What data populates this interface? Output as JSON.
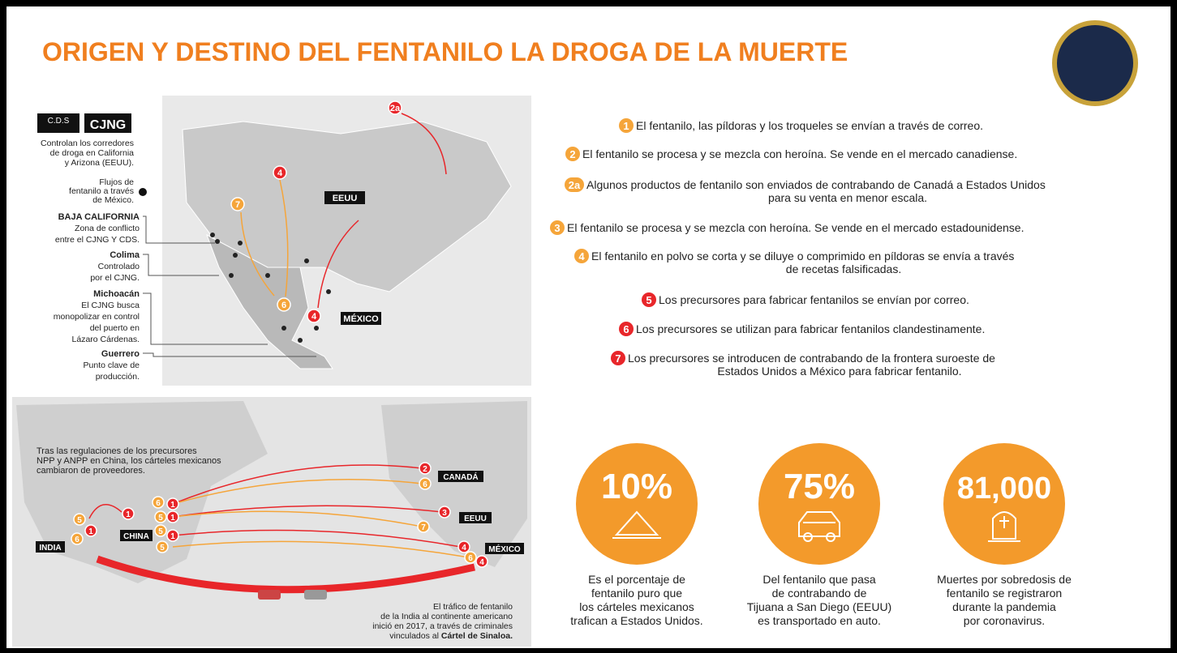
{
  "title": "ORIGEN Y DESTINO DEL FENTANILO LA DROGA DE LA MUERTE",
  "legend": {
    "cds": "C.D.S",
    "cjng": "CJNG",
    "corridors": [
      "Controlan los corredores",
      "de droga en California",
      "y Arizona (EEUU)."
    ],
    "flows": [
      "Flujos de",
      "fentanilo a través",
      "de México."
    ]
  },
  "regions": [
    {
      "name": "BAJA CALIFORNIA",
      "lines": [
        "Zona de conflicto",
        "entre el CJNG Y CDS."
      ]
    },
    {
      "name": "Colima",
      "lines": [
        "Controlado",
        "por el CJNG."
      ]
    },
    {
      "name": "Michoacán",
      "lines": [
        "El CJNG busca",
        "monopolizar en control",
        "del puerto en",
        "Lázaro Cárdenas."
      ]
    },
    {
      "name": "Guerrero",
      "lines": [
        "Punto clave de",
        "producción."
      ]
    }
  ],
  "usa_map": {
    "labels": [
      "EEUU",
      "MÉXICO"
    ],
    "markers": [
      "2a",
      "4",
      "7",
      "6",
      "4"
    ]
  },
  "world_map": {
    "note": [
      "Tras las regulaciones de los precursores",
      "NPP y ANPP en China, los cárteles mexicanos",
      "cambiaron de proveedores."
    ],
    "labels": [
      "CANADÁ",
      "EEUU",
      "MÉXICO",
      "CHINA",
      "INDIA"
    ],
    "markers": [
      "6",
      "1",
      "5",
      "1",
      "5",
      "1",
      "5",
      "1",
      "5",
      "1",
      "6",
      "2",
      "6",
      "3",
      "7",
      "4",
      "6",
      "4"
    ],
    "footnote": [
      "El tráfico de fentanilo",
      "de la India al continente americano",
      "inició en 2017, a través de criminales",
      "vinculados al"
    ],
    "footnote_bold": "Cártel de Sinaloa."
  },
  "steps": [
    {
      "number": "1",
      "lines": [
        "El fentanilo, las píldoras y los troqueles se envían a través de correo."
      ]
    },
    {
      "number": "2",
      "lines": [
        "El fentanilo se procesa y se mezcla con heroína. Se vende en el mercado canadiense."
      ]
    },
    {
      "number": "2a",
      "lines": [
        "Algunos productos de fentanilo son enviados de contrabando de Canadá a Estados Unidos",
        "para su venta en menor escala."
      ]
    },
    {
      "number": "3",
      "lines": [
        "El fentanilo se procesa y se mezcla con heroína. Se vende en el mercado estadounidense."
      ]
    },
    {
      "number": "4",
      "lines": [
        "El fentanilo en polvo se corta y se diluye o comprimido en píldoras se envía a través",
        "de recetas falsificadas."
      ]
    },
    {
      "number": "5",
      "lines": [
        "Los precursores para fabricar fentanilos se envían por correo."
      ]
    },
    {
      "number": "6",
      "lines": [
        "Los precursores se utilizan para fabricar fentanilos clandestinamente."
      ]
    },
    {
      "number": "7",
      "lines": [
        "Los precursores se introducen de contrabando de la frontera suroeste de",
        "Estados Unidos a México para fabricar fentanilo."
      ]
    }
  ],
  "stats": [
    {
      "value": "10%",
      "caption": [
        "Es el porcentaje de",
        "fentanilo puro que",
        "los cárteles mexicanos",
        "trafican a Estados Unidos."
      ]
    },
    {
      "value": "75%",
      "caption": [
        "Del fentanilo que pasa",
        "de contrabando de",
        "Tijuana a San Diego (EEUU)",
        "es transportado en auto."
      ]
    },
    {
      "value": "81,000",
      "caption": [
        "Muertes por sobredosis de",
        "fentanilo se registraron",
        "durante la pandemia",
        "por coronavirus."
      ]
    }
  ]
}
